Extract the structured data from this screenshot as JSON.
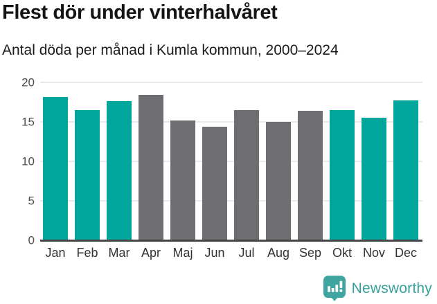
{
  "header": {
    "title": "Flest dör under vinterhalvåret",
    "subtitle": "Antal döda per månad i Kumla kommun, 2000–2024"
  },
  "chart_data": {
    "type": "bar",
    "title": "Flest dör under vinterhalvåret",
    "subtitle": "Antal döda per månad i Kumla kommun, 2000–2024",
    "categories": [
      "Jan",
      "Feb",
      "Mar",
      "Apr",
      "Maj",
      "Jun",
      "Jul",
      "Aug",
      "Sep",
      "Okt",
      "Nov",
      "Dec"
    ],
    "values": [
      18.2,
      16.5,
      17.6,
      18.4,
      15.2,
      14.4,
      16.5,
      15.0,
      16.4,
      16.5,
      15.5,
      17.7
    ],
    "bar_colors": [
      "#00a59b",
      "#00a59b",
      "#00a59b",
      "#6d6d72",
      "#6d6d72",
      "#6d6d72",
      "#6d6d72",
      "#6d6d72",
      "#6d6d72",
      "#00a59b",
      "#00a59b",
      "#00a59b"
    ],
    "palette": {
      "winter_teal": "#00a59b",
      "summer_gray": "#6d6d72"
    },
    "xlabel": "",
    "ylabel": "",
    "ylim": [
      0,
      20
    ],
    "yticks": [
      0,
      5,
      10,
      15,
      20
    ],
    "grid": "horizontal",
    "legend": "none"
  },
  "footer": {
    "brand": "Newsworthy",
    "logo_icon": "newsworthy-speech-bubble-bar-chart-icon",
    "brand_color": "#36a09a"
  }
}
